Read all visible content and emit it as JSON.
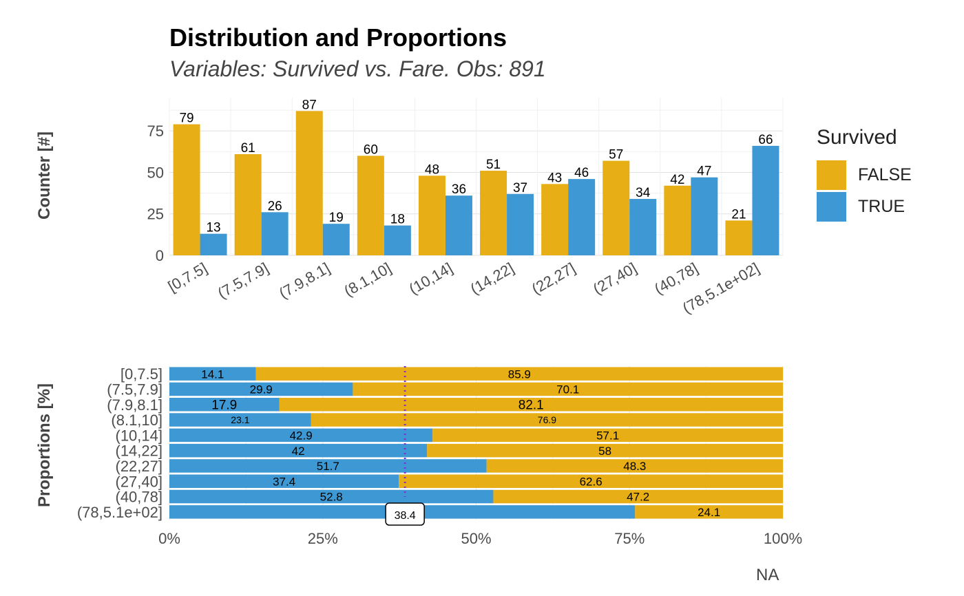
{
  "title": "Distribution and Proportions",
  "subtitle": "Variables: Survived vs. Fare. Obs: 891",
  "colors": {
    "false": "#E7AE16",
    "true": "#3E98D3",
    "mean_line": "#8A2BE2"
  },
  "legend": {
    "title": "Survived",
    "items": [
      {
        "label": "FALSE",
        "color": "#E7AE16"
      },
      {
        "label": "TRUE",
        "color": "#3E98D3"
      }
    ]
  },
  "na_label": "NA",
  "chart_data": [
    {
      "type": "bar",
      "ylabel": "Counter [#]",
      "categories": [
        "[0,7.5]",
        "(7.5,7.9]",
        "(7.9,8.1]",
        "(8.1,10]",
        "(10,14]",
        "(14,22]",
        "(22,27]",
        "(27,40]",
        "(40,78]",
        "(78,5.1e+02]"
      ],
      "series": [
        {
          "name": "FALSE",
          "values": [
            79,
            61,
            87,
            60,
            48,
            51,
            43,
            57,
            42,
            21
          ]
        },
        {
          "name": "TRUE",
          "values": [
            13,
            26,
            19,
            18,
            36,
            37,
            46,
            34,
            47,
            66
          ]
        }
      ],
      "ylim": [
        0,
        95
      ],
      "yticks": [
        0,
        25,
        50,
        75
      ],
      "grid": true,
      "legend_position": "right"
    },
    {
      "type": "bar",
      "orientation": "horizontal",
      "stacked": true,
      "ylabel": "Proportions [%]",
      "categories": [
        "[0,7.5]",
        "(7.5,7.9]",
        "(7.9,8.1]",
        "(8.1,10]",
        "(10,14]",
        "(14,22]",
        "(22,27]",
        "(27,40]",
        "(40,78]",
        "(78,5.1e+02]"
      ],
      "series": [
        {
          "name": "TRUE",
          "values": [
            14.1,
            29.9,
            17.9,
            23.1,
            42.9,
            42,
            51.7,
            37.4,
            52.8,
            75.9
          ]
        },
        {
          "name": "FALSE",
          "values": [
            85.9,
            70.1,
            82.1,
            76.9,
            57.1,
            58,
            48.3,
            62.6,
            47.2,
            24.1
          ]
        }
      ],
      "data_labels_true": [
        "14.1",
        "29.9",
        "17.9",
        "23.1",
        "42.9",
        "42",
        "51.7",
        "37.4",
        "52.8",
        ""
      ],
      "data_labels_false": [
        "85.9",
        "70.1",
        "82.1",
        "76.9",
        "57.1",
        "58",
        "48.3",
        "62.6",
        "47.2",
        "24.1"
      ],
      "mean_line": {
        "value": 38.4,
        "label": "38.4"
      },
      "xlim": [
        0,
        100
      ],
      "xticks": [
        "0%",
        "25%",
        "50%",
        "75%",
        "100%"
      ],
      "grid": true
    }
  ]
}
